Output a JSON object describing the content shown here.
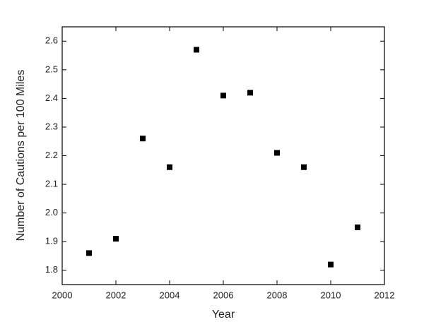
{
  "chart_data": {
    "type": "scatter",
    "x_label": "Year",
    "y_label": "Number of Cautions per 100 Miles",
    "x": [
      2001,
      2002,
      2003,
      2004,
      2005,
      2006,
      2007,
      2008,
      2009,
      2010,
      2011
    ],
    "series": [
      {
        "color": "#000000",
        "values": [
          1.86,
          1.91,
          2.26,
          2.16,
          2.57,
          2.41,
          2.42,
          2.21,
          2.16,
          1.82,
          1.95
        ]
      }
    ],
    "xlim": [
      2000,
      2012
    ],
    "xticks": [
      2000,
      2002,
      2004,
      2006,
      2008,
      2010,
      2012
    ],
    "ylim": [
      1.75,
      2.65
    ],
    "yticks": [
      1.8,
      1.9,
      {
        "value": 2.0,
        "label": "2.0"
      },
      2.1,
      2.2,
      2.3,
      2.4,
      2.5,
      2.6
    ],
    "grid": false
  }
}
